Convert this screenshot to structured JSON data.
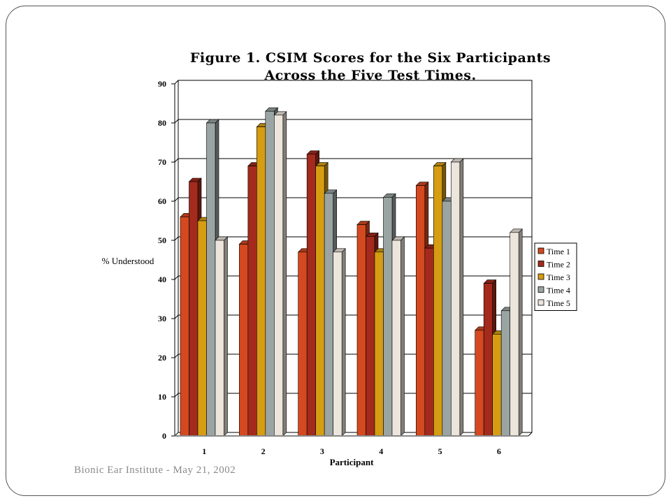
{
  "footer": "Bionic Ear Institute - May 21, 2002",
  "chart_data": {
    "type": "bar",
    "title": [
      "Figure 1.  CSIM Scores for the Six Participants",
      "Across the Five Test Times."
    ],
    "xlabel": "Participant",
    "ylabel": "% Understood",
    "categories": [
      "1",
      "2",
      "3",
      "4",
      "5",
      "6"
    ],
    "ylim": [
      0,
      90
    ],
    "yticks": [
      0,
      10,
      20,
      30,
      40,
      50,
      60,
      70,
      80,
      90
    ],
    "grid": true,
    "legend_placement": "right",
    "series": [
      {
        "name": "Time 1",
        "color": "#d4491f",
        "values": [
          56,
          49,
          47,
          54,
          64,
          27
        ]
      },
      {
        "name": "Time 2",
        "color": "#a32a1c",
        "values": [
          65,
          69,
          72,
          51,
          48,
          39
        ]
      },
      {
        "name": "Time 3",
        "color": "#d69d12",
        "values": [
          55,
          79,
          69,
          47,
          69,
          26
        ]
      },
      {
        "name": "Time 4",
        "color": "#9aa5a3",
        "values": [
          80,
          83,
          62,
          61,
          60,
          32
        ]
      },
      {
        "name": "Time 5",
        "color": "#ece5dc",
        "values": [
          50,
          82,
          47,
          50,
          70,
          52
        ]
      }
    ]
  }
}
